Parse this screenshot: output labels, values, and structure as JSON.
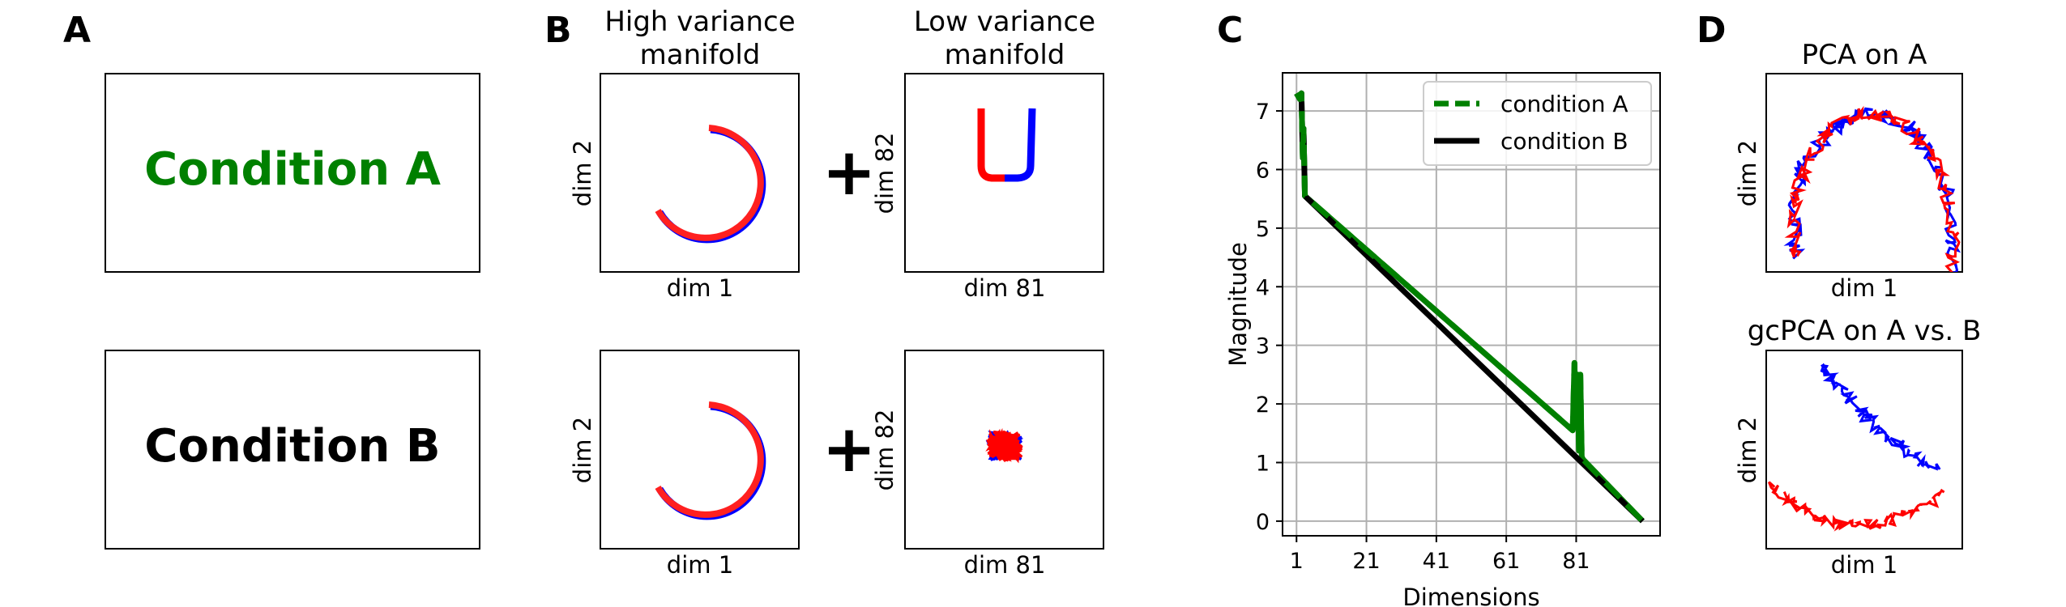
{
  "panels": {
    "A": {
      "letter": "A",
      "condition_a": "Condition A",
      "condition_b": "Condition B"
    },
    "B": {
      "letter": "B",
      "title_high": "High variance manifold",
      "title_high_line1": "High variance",
      "title_high_line2": "manifold",
      "title_low_line1": "Low variance",
      "title_low_line2": "manifold",
      "plus": "+",
      "dim1": "dim 1",
      "dim2": "dim 2",
      "dim81": "dim 81",
      "dim82": "dim 82"
    },
    "C": {
      "letter": "C"
    },
    "D": {
      "letter": "D",
      "title_top": "PCA on A",
      "title_bottom": "gcPCA on A vs. B",
      "xlabel": "dim 1",
      "ylabel": "dim 2"
    }
  },
  "colors": {
    "condition_a": "#008000",
    "condition_b": "#000000",
    "red": "#ff0000",
    "blue": "#0000ff",
    "grid": "#b0b0b0"
  },
  "chart_data": {
    "type": "line",
    "xlabel": "Dimensions",
    "ylabel": "Magnitude",
    "xticks": [
      1,
      21,
      41,
      61,
      81
    ],
    "xticklabels": [
      "1",
      "21",
      "41",
      "61",
      "81"
    ],
    "yticks": [
      0,
      1,
      2,
      3,
      4,
      5,
      6,
      7
    ],
    "yticklabels": [
      "0",
      "1",
      "2",
      "3",
      "4",
      "5",
      "6",
      "7"
    ],
    "xlim": [
      -3,
      105
    ],
    "ylim": [
      -0.25,
      7.65
    ],
    "grid": true,
    "legend_position": "upper right",
    "series": [
      {
        "name": "condition A",
        "style": "dashed",
        "color": "#008000",
        "x": [
          1,
          2,
          2.4,
          2.8,
          3,
          3.4,
          80,
          80.5,
          81,
          81.4,
          81.8,
          82.2,
          82.6,
          83,
          100
        ],
        "y": [
          7.3,
          7.2,
          7.3,
          6.2,
          6.7,
          5.55,
          1.55,
          2.7,
          1.6,
          2.5,
          1.2,
          2.5,
          1.1,
          1.05,
          0
        ]
      },
      {
        "name": "condition B",
        "style": "solid",
        "color": "#000000",
        "x": [
          1,
          2,
          2.4,
          2.8,
          3,
          3.4,
          100
        ],
        "y": [
          7.3,
          7.2,
          7.3,
          6.2,
          6.7,
          5.55,
          0
        ]
      }
    ]
  }
}
